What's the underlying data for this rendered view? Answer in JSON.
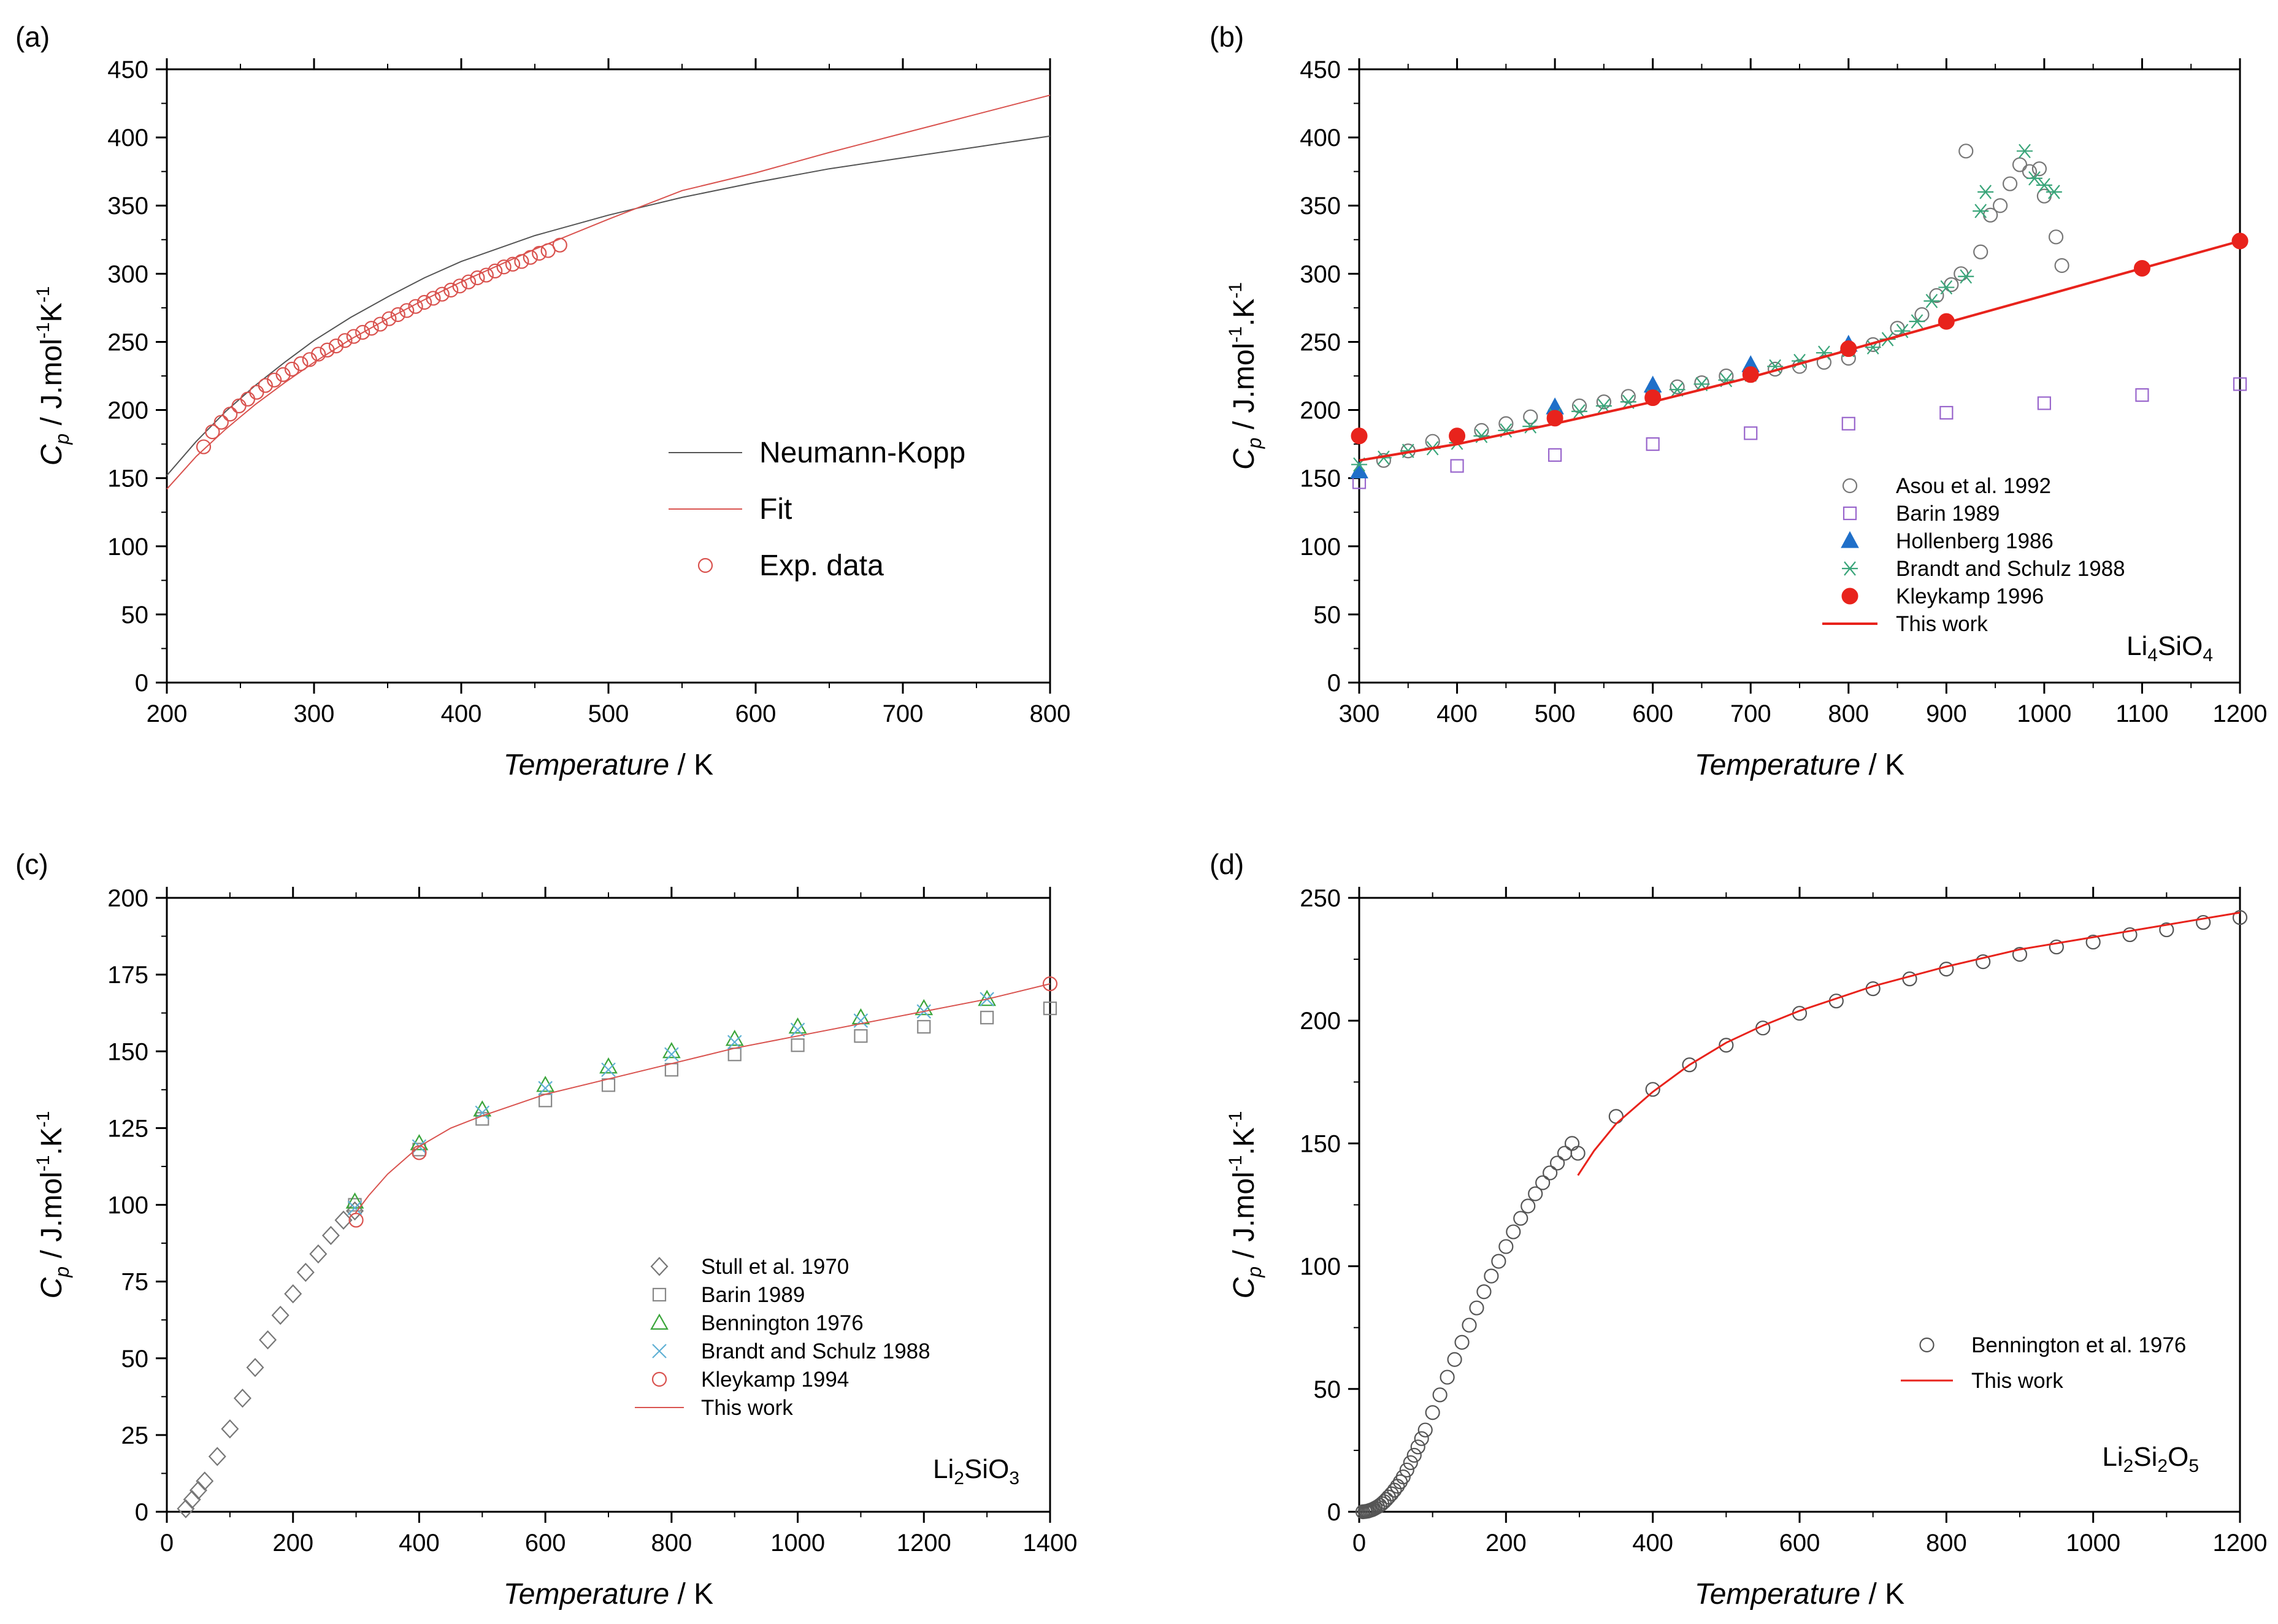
{
  "chart_data": [
    {
      "id": "a",
      "panel_label": "(a)",
      "type": "line",
      "xlabel": "Temperature",
      "xunit": " / K",
      "ylabel_main": "C",
      "ylabel_sub": "p",
      "ylabel_rest1": " / J.mol",
      "ylabel_sup1": "-1",
      "ylabel_rest2": "K",
      "ylabel_sup2": "-1",
      "xlim": [
        200,
        800
      ],
      "ylim": [
        0,
        450
      ],
      "xticks": [
        200,
        300,
        400,
        500,
        600,
        700,
        800
      ],
      "yticks": [
        0,
        50,
        100,
        150,
        200,
        250,
        300,
        350,
        400,
        450
      ],
      "xminor": 50,
      "yminor": 25,
      "legend_style": "large",
      "series": [
        {
          "name": "Neumann-Kopp",
          "kind": "line",
          "color": "#555555",
          "width": 2,
          "x": [
            200,
            220,
            240,
            260,
            280,
            300,
            325,
            350,
            375,
            400,
            450,
            500,
            550,
            600,
            650,
            700,
            750,
            800
          ],
          "y": [
            152,
            177,
            199,
            218,
            235,
            251,
            268,
            283,
            297,
            309,
            328,
            343,
            356,
            367,
            377,
            385,
            393,
            401
          ]
        },
        {
          "name": "Fit",
          "kind": "line",
          "color": "#d9534f",
          "width": 2,
          "x": [
            200,
            220,
            240,
            260,
            280,
            300,
            325,
            350,
            375,
            400,
            450,
            500,
            550,
            600,
            650,
            700,
            750,
            800
          ],
          "y": [
            142,
            166,
            186,
            204,
            220,
            235,
            252,
            267,
            281,
            294,
            318,
            340,
            361,
            374,
            389,
            403,
            417,
            431
          ]
        },
        {
          "name": "Exp. data",
          "kind": "marker",
          "marker": "circle",
          "color": "#d9534f",
          "x": [
            225,
            231,
            237,
            243,
            249,
            255,
            261,
            267,
            273,
            279,
            285,
            291,
            297,
            303,
            309,
            315,
            321,
            327,
            333,
            339,
            345,
            351,
            357,
            363,
            369,
            375,
            381,
            387,
            393,
            399,
            405,
            411,
            417,
            423,
            429,
            435,
            441,
            447,
            453,
            459,
            467
          ],
          "y": [
            173,
            184,
            191,
            197,
            203,
            208,
            213,
            218,
            222,
            226,
            230,
            234,
            237,
            241,
            244,
            247,
            251,
            254,
            257,
            260,
            263,
            267,
            270,
            273,
            276,
            279,
            282,
            285,
            288,
            291,
            294,
            297,
            299,
            302,
            305,
            307,
            309,
            312,
            315,
            317,
            321
          ]
        }
      ]
    },
    {
      "id": "b",
      "panel_label": "(b)",
      "type": "scatter",
      "xlabel": "Temperature",
      "xunit": " / K",
      "ylabel_main": "C",
      "ylabel_sub": "p",
      "ylabel_rest1": " / J.mol",
      "ylabel_sup1": "-1",
      "ylabel_rest2": ".K",
      "ylabel_sup2": "-1",
      "xlim": [
        300,
        1200
      ],
      "ylim": [
        0,
        450
      ],
      "xticks": [
        300,
        400,
        500,
        600,
        700,
        800,
        900,
        1000,
        1100,
        1200
      ],
      "yticks": [
        0,
        50,
        100,
        150,
        200,
        250,
        300,
        350,
        400,
        450
      ],
      "xminor": 50,
      "yminor": 25,
      "legend_style": "small",
      "compound": {
        "parts": [
          [
            "Li",
            ""
          ],
          [
            "4",
            "sub"
          ],
          [
            "SiO",
            ""
          ],
          [
            "4",
            "sub"
          ]
        ]
      },
      "series": [
        {
          "name": "Asou et al. 1992",
          "kind": "marker",
          "marker": "circle",
          "color": "#777777",
          "x": [
            325,
            350,
            375,
            400,
            425,
            450,
            475,
            500,
            525,
            550,
            575,
            600,
            625,
            650,
            675,
            700,
            725,
            750,
            775,
            800,
            825,
            850,
            875,
            890,
            905,
            915,
            920,
            935,
            945,
            955,
            965,
            975,
            985,
            995,
            1000,
            1012,
            1018
          ],
          "y": [
            163,
            170,
            177,
            180,
            185,
            190,
            195,
            198,
            203,
            206,
            210,
            212,
            217,
            220,
            225,
            228,
            230,
            232,
            235,
            238,
            248,
            260,
            270,
            284,
            292,
            300,
            390,
            316,
            343,
            350,
            366,
            380,
            375,
            377,
            357,
            327,
            306
          ]
        },
        {
          "name": "Barin 1989",
          "kind": "marker",
          "marker": "square",
          "color": "#9966cc",
          "x": [
            300,
            400,
            500,
            600,
            700,
            800,
            900,
            1000,
            1100,
            1200
          ],
          "y": [
            147,
            159,
            167,
            175,
            183,
            190,
            198,
            205,
            211,
            219
          ]
        },
        {
          "name": "Hollenberg 1986",
          "kind": "marker",
          "marker": "triangle-filled",
          "color": "#1f6fc9",
          "x": [
            300,
            500,
            600,
            700,
            800
          ],
          "y": [
            155,
            202,
            218,
            233,
            248
          ]
        },
        {
          "name": "Brandt and Schulz 1988",
          "kind": "marker",
          "marker": "asterisk",
          "color": "#3aa57a",
          "x": [
            300,
            325,
            350,
            375,
            400,
            425,
            450,
            475,
            500,
            525,
            550,
            575,
            600,
            625,
            650,
            675,
            700,
            725,
            750,
            775,
            800,
            825,
            840,
            855,
            870,
            885,
            900,
            920,
            935,
            940,
            980,
            990,
            1000,
            1010
          ],
          "y": [
            160,
            165,
            170,
            172,
            176,
            181,
            185,
            188,
            196,
            199,
            203,
            206,
            210,
            215,
            219,
            222,
            226,
            232,
            236,
            242,
            244,
            246,
            252,
            258,
            265,
            280,
            290,
            298,
            346,
            360,
            390,
            370,
            365,
            360
          ]
        },
        {
          "name": "Kleykamp 1996",
          "kind": "marker",
          "marker": "circle-filled",
          "color": "#e8231c",
          "x": [
            300,
            400,
            500,
            600,
            700,
            800,
            900,
            1100,
            1200
          ],
          "y": [
            181,
            181,
            194,
            209,
            226,
            245,
            265,
            304,
            324
          ]
        },
        {
          "name": "This work",
          "kind": "line",
          "color": "#e8231c",
          "width": 4,
          "x": [
            300,
            400,
            500,
            600,
            700,
            800,
            900,
            1000,
            1100,
            1200
          ],
          "y": [
            163,
            175,
            190,
            206,
            224,
            244,
            264,
            284,
            304,
            324
          ]
        }
      ]
    },
    {
      "id": "c",
      "panel_label": "(c)",
      "type": "scatter",
      "xlabel": "Temperature",
      "xunit": " / K",
      "ylabel_main": "C",
      "ylabel_sub": "p",
      "ylabel_rest1": " / J.mol",
      "ylabel_sup1": "-1",
      "ylabel_rest2": ".K",
      "ylabel_sup2": "-1",
      "xlim": [
        0,
        1400
      ],
      "ylim": [
        0,
        200
      ],
      "xticks": [
        0,
        200,
        400,
        600,
        800,
        1000,
        1200,
        1400
      ],
      "yticks": [
        0,
        25,
        50,
        75,
        100,
        125,
        150,
        175,
        200
      ],
      "xminor": 100,
      "yminor": 12.5,
      "legend_style": "small",
      "compound": {
        "parts": [
          [
            "Li",
            ""
          ],
          [
            "2",
            "sub"
          ],
          [
            "SiO",
            ""
          ],
          [
            "3",
            "sub"
          ]
        ]
      },
      "series": [
        {
          "name": "Stull et al. 1970",
          "kind": "marker",
          "marker": "diamond",
          "color": "#777777",
          "x": [
            30,
            40,
            50,
            60,
            80,
            100,
            120,
            140,
            160,
            180,
            200,
            220,
            240,
            260,
            280,
            298
          ],
          "y": [
            1,
            4,
            7,
            10,
            18,
            27,
            37,
            47,
            56,
            64,
            71,
            78,
            84,
            90,
            95,
            98
          ]
        },
        {
          "name": "Barin 1989",
          "kind": "marker",
          "marker": "square",
          "color": "#888888",
          "x": [
            298,
            400,
            500,
            600,
            700,
            800,
            900,
            1000,
            1100,
            1200,
            1300,
            1400
          ],
          "y": [
            100,
            118,
            128,
            134,
            139,
            144,
            149,
            152,
            155,
            158,
            161,
            164
          ]
        },
        {
          "name": "Bennington 1976",
          "kind": "marker",
          "marker": "triangle",
          "color": "#3aa53a",
          "x": [
            298,
            400,
            500,
            600,
            700,
            800,
            900,
            1000,
            1100,
            1200,
            1300
          ],
          "y": [
            101,
            120,
            131,
            139,
            145,
            150,
            154,
            158,
            161,
            164,
            167
          ]
        },
        {
          "name": "Brandt and Schulz 1988",
          "kind": "marker",
          "marker": "x",
          "color": "#5fb0d4",
          "x": [
            298,
            400,
            500,
            600,
            700,
            800,
            900,
            1000,
            1100,
            1200,
            1300
          ],
          "y": [
            99,
            119,
            130,
            138,
            144,
            149,
            153,
            157,
            160,
            163,
            167
          ]
        },
        {
          "name": "Kleykamp 1994",
          "kind": "marker",
          "marker": "circle",
          "color": "#d9534f",
          "x": [
            300,
            400,
            1400
          ],
          "y": [
            95,
            117,
            172
          ]
        },
        {
          "name": "This work",
          "kind": "line",
          "color": "#d9534f",
          "width": 2,
          "x": [
            298,
            320,
            350,
            400,
            450,
            500,
            600,
            700,
            800,
            900,
            1000,
            1100,
            1200,
            1300,
            1400
          ],
          "y": [
            97,
            103,
            110,
            119,
            125,
            129,
            136,
            141,
            146,
            151,
            155,
            159,
            163,
            167,
            172
          ]
        }
      ]
    },
    {
      "id": "d",
      "panel_label": "(d)",
      "type": "scatter",
      "xlabel": "Temperature",
      "xunit": " / K",
      "ylabel_main": "C",
      "ylabel_sub": "p",
      "ylabel_rest1": " / J.mol",
      "ylabel_sup1": "-1",
      "ylabel_rest2": ".K",
      "ylabel_sup2": "-1",
      "xlim": [
        0,
        1200
      ],
      "ylim": [
        0,
        250
      ],
      "xticks": [
        0,
        200,
        400,
        600,
        800,
        1000,
        1200
      ],
      "yticks": [
        0,
        50,
        100,
        150,
        200,
        250
      ],
      "xminor": 100,
      "yminor": 25,
      "legend_style": "small",
      "compound": {
        "parts": [
          [
            "Li",
            ""
          ],
          [
            "2",
            "sub"
          ],
          [
            "Si",
            ""
          ],
          [
            "2",
            "sub"
          ],
          [
            "O",
            ""
          ],
          [
            "5",
            "sub"
          ]
        ]
      },
      "series": [
        {
          "name": "Bennington et al. 1976",
          "kind": "marker",
          "marker": "circle",
          "color": "#555555",
          "x": [
            5,
            8,
            10,
            12,
            14,
            16,
            18,
            20,
            22,
            25,
            28,
            31,
            34,
            37,
            40,
            44,
            48,
            52,
            56,
            60,
            65,
            70,
            75,
            80,
            85,
            90,
            100,
            110,
            120,
            130,
            140,
            150,
            160,
            170,
            180,
            190,
            200,
            210,
            220,
            230,
            240,
            250,
            260,
            270,
            280,
            290,
            298,
            350,
            400,
            450,
            500,
            550,
            600,
            650,
            700,
            750,
            800,
            850,
            900,
            950,
            1000,
            1050,
            1100,
            1150,
            1200
          ],
          "y": [
            0,
            0.1,
            0.2,
            0.3,
            0.5,
            0.7,
            0.9,
            1.2,
            1.5,
            2,
            2.6,
            3.3,
            4.1,
            5,
            6,
            7.3,
            8.8,
            10.4,
            12.2,
            14.2,
            17,
            20,
            23,
            26.4,
            29.8,
            33.3,
            40.4,
            47.6,
            54.8,
            62,
            69,
            76,
            83,
            89.6,
            96,
            102,
            108,
            114,
            119.5,
            124.5,
            129.5,
            134,
            138,
            142,
            146,
            150,
            146,
            161,
            172,
            182,
            190,
            197,
            203,
            208,
            213,
            217,
            221,
            224,
            227,
            230,
            232,
            235,
            237,
            240,
            242
          ]
        },
        {
          "name": "This work",
          "kind": "line",
          "color": "#e8231c",
          "width": 3,
          "x": [
            298,
            320,
            350,
            400,
            450,
            500,
            550,
            600,
            700,
            800,
            900,
            1000,
            1100,
            1200
          ],
          "y": [
            137,
            147,
            158,
            171,
            182,
            191,
            198,
            204,
            214,
            222,
            229,
            234,
            239,
            244
          ]
        }
      ]
    }
  ]
}
